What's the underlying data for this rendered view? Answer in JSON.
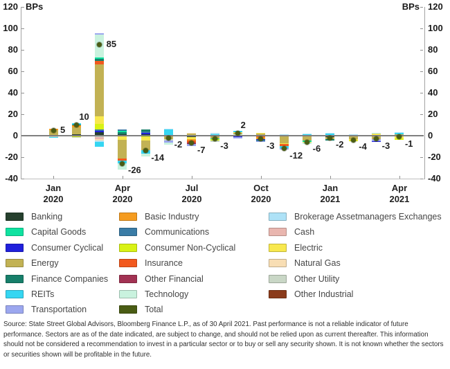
{
  "chart_data": {
    "type": "bar",
    "subtype": "stacked-bar-with-total-dots",
    "title": "",
    "unit": "BPs",
    "left_axis_label": "BPs",
    "right_axis_label": "BPs",
    "ylim": [
      -40,
      120
    ],
    "yticks": [
      120,
      100,
      80,
      60,
      40,
      20,
      0,
      -20,
      -40
    ],
    "grid": false,
    "legend_position": "bottom",
    "x_quarter_ticks": [
      {
        "index": 0,
        "line1": "Jan",
        "line2": "2020"
      },
      {
        "index": 3,
        "line1": "Apr",
        "line2": "2020"
      },
      {
        "index": 6,
        "line1": "Jul",
        "line2": "2020"
      },
      {
        "index": 9,
        "line1": "Oct",
        "line2": "2020"
      },
      {
        "index": 12,
        "line1": "Jan",
        "line2": "2021"
      },
      {
        "index": 15,
        "line1": "Apr",
        "line2": "2021"
      }
    ],
    "totals": [
      5,
      10,
      85,
      -26,
      -14,
      -2,
      -7,
      -3,
      2,
      -3,
      -12,
      -6,
      -2,
      -4,
      -3,
      -1
    ],
    "bars": [
      {
        "month": "Jan 2020",
        "total": 5,
        "label": "5",
        "label_pos": "right",
        "segments": [
          {
            "sector": "Banking",
            "value": 0.5
          },
          {
            "sector": "Energy",
            "value": 4.5
          },
          {
            "sector": "Basic Industry",
            "value": 1.5
          },
          {
            "sector": "Capital Goods",
            "value": -0.5
          },
          {
            "sector": "Other Utility",
            "value": -0.5
          },
          {
            "sector": "REITs",
            "value": -0.5
          }
        ]
      },
      {
        "month": "Feb 2020",
        "total": 10,
        "label": "10",
        "label_pos": "above",
        "segments": [
          {
            "sector": "Banking",
            "value": 1.5
          },
          {
            "sector": "Energy",
            "value": 6.5
          },
          {
            "sector": "Basic Industry",
            "value": 1.5
          },
          {
            "sector": "Finance Companies",
            "value": 1
          },
          {
            "sector": "REITs",
            "value": 1
          },
          {
            "sector": "Electric",
            "value": -0.5
          },
          {
            "sector": "Consumer Non-Cyclical",
            "value": -0.5
          },
          {
            "sector": "Other Utility",
            "value": -0.5
          }
        ]
      },
      {
        "month": "Mar 2020",
        "total": 85,
        "label": "85",
        "label_pos": "right",
        "segments": [
          {
            "sector": "Banking",
            "value": 3
          },
          {
            "sector": "Consumer Cyclical",
            "value": 1.5
          },
          {
            "sector": "Communications",
            "value": 1.5
          },
          {
            "sector": "Consumer Non-Cyclical",
            "value": 5
          },
          {
            "sector": "Electric",
            "value": 7
          },
          {
            "sector": "Energy",
            "value": 48.5
          },
          {
            "sector": "Insurance",
            "value": 3
          },
          {
            "sector": "Finance Companies",
            "value": 2
          },
          {
            "sector": "Capital Goods",
            "value": 1.5
          },
          {
            "sector": "Technology",
            "value": 21
          },
          {
            "sector": "Transportation",
            "value": 1.5
          },
          {
            "sector": "Other Utility",
            "value": -1.5
          },
          {
            "sector": "Cash",
            "value": -2
          },
          {
            "sector": "Natural Gas",
            "value": -1
          },
          {
            "sector": "Brokerage Assetmanagers Exchanges",
            "value": -1.5
          },
          {
            "sector": "REITs",
            "value": -4.5
          }
        ]
      },
      {
        "month": "Apr 2020",
        "total": -26,
        "label": "-26",
        "label_pos": "below",
        "segments": [
          {
            "sector": "Banking",
            "value": 1.5
          },
          {
            "sector": "Finance Companies",
            "value": 2
          },
          {
            "sector": "Capital Goods",
            "value": 1
          },
          {
            "sector": "Communications",
            "value": 1
          },
          {
            "sector": "Electric",
            "value": -4
          },
          {
            "sector": "Energy",
            "value": -17
          },
          {
            "sector": "Insurance",
            "value": -2
          },
          {
            "sector": "REITs",
            "value": -2.5
          },
          {
            "sector": "Technology",
            "value": -6
          }
        ]
      },
      {
        "month": "May 2020",
        "total": -14,
        "label": "-14",
        "label_pos": "below",
        "segments": [
          {
            "sector": "Banking",
            "value": 1
          },
          {
            "sector": "Consumer Cyclical",
            "value": 1.5
          },
          {
            "sector": "Communications",
            "value": 1.5
          },
          {
            "sector": "Finance Companies",
            "value": 1.5
          },
          {
            "sector": "Consumer Non-Cyclical",
            "value": -1.5
          },
          {
            "sector": "Electric",
            "value": -3
          },
          {
            "sector": "Energy",
            "value": -9
          },
          {
            "sector": "REITs",
            "value": -3.5
          },
          {
            "sector": "Technology",
            "value": -2.5
          }
        ]
      },
      {
        "month": "Jun 2020",
        "total": -2,
        "label": "-2",
        "label_pos": "below",
        "segments": [
          {
            "sector": "REITs",
            "value": 5.5
          },
          {
            "sector": "Brokerage Assetmanagers Exchanges",
            "value": 1
          },
          {
            "sector": "Energy",
            "value": -3
          },
          {
            "sector": "Other Utility",
            "value": -1.5
          },
          {
            "sector": "Transportation",
            "value": -2
          },
          {
            "sector": "Technology",
            "value": -2
          }
        ]
      },
      {
        "month": "Jul 2020",
        "total": -7,
        "label": "-7",
        "label_pos": "below",
        "segments": [
          {
            "sector": "Energy",
            "value": 2
          },
          {
            "sector": "Natural Gas",
            "value": 0.5
          },
          {
            "sector": "Banking",
            "value": -1.5
          },
          {
            "sector": "Electric",
            "value": -2
          },
          {
            "sector": "Basic Industry",
            "value": -1
          },
          {
            "sector": "Insurance",
            "value": -2
          },
          {
            "sector": "Other Financial",
            "value": -1
          },
          {
            "sector": "Transportation",
            "value": -2
          }
        ]
      },
      {
        "month": "Aug 2020",
        "total": -3,
        "label": "-3",
        "label_pos": "below",
        "segments": [
          {
            "sector": "REITs",
            "value": 1.5
          },
          {
            "sector": "Brokerage Assetmanagers Exchanges",
            "value": 1
          },
          {
            "sector": "Energy",
            "value": -2.5
          },
          {
            "sector": "Capital Goods",
            "value": -1
          },
          {
            "sector": "Consumer Non-Cyclical",
            "value": -1
          },
          {
            "sector": "Other Utility",
            "value": -1
          }
        ]
      },
      {
        "month": "Sep 2020",
        "total": 2,
        "label": "2",
        "label_pos": "above",
        "segments": [
          {
            "sector": "Technology",
            "value": 1.5
          },
          {
            "sector": "Energy",
            "value": 1.5
          },
          {
            "sector": "Electric",
            "value": 0.5
          },
          {
            "sector": "REITs",
            "value": 1
          },
          {
            "sector": "Consumer Cyclical",
            "value": -1
          },
          {
            "sector": "Transportation",
            "value": -1.5
          }
        ]
      },
      {
        "month": "Oct 2020",
        "total": -3,
        "label": "-3",
        "label_pos": "below",
        "segments": [
          {
            "sector": "Energy",
            "value": 2
          },
          {
            "sector": "Electric",
            "value": 0.5
          },
          {
            "sector": "Insurance",
            "value": -1.5
          },
          {
            "sector": "Basic Industry",
            "value": -1.5
          },
          {
            "sector": "Consumer Cyclical",
            "value": -1
          },
          {
            "sector": "Communications",
            "value": -1
          },
          {
            "sector": "Transportation",
            "value": -0.5
          }
        ]
      },
      {
        "month": "Nov 2020",
        "total": -12,
        "label": "-12",
        "label_pos": "below",
        "segments": [
          {
            "sector": "Other Utility",
            "value": 0.5
          },
          {
            "sector": "Brokerage Assetmanagers Exchanges",
            "value": 0.5
          },
          {
            "sector": "Energy",
            "value": -7
          },
          {
            "sector": "Electric",
            "value": -1
          },
          {
            "sector": "Insurance",
            "value": -1.5
          },
          {
            "sector": "REITs",
            "value": -2
          },
          {
            "sector": "Transportation",
            "value": -1.5
          }
        ]
      },
      {
        "month": "Dec 2020",
        "total": -6,
        "label": "-6",
        "label_pos": "below",
        "segments": [
          {
            "sector": "REITs",
            "value": 1.5
          },
          {
            "sector": "Brokerage Assetmanagers Exchanges",
            "value": 0.5
          },
          {
            "sector": "Energy",
            "value": -4.5
          },
          {
            "sector": "Capital Goods",
            "value": -1
          },
          {
            "sector": "Electric",
            "value": -1
          },
          {
            "sector": "Technology",
            "value": -1.5
          }
        ]
      },
      {
        "month": "Jan 2021",
        "total": -2,
        "label": "-2",
        "label_pos": "below",
        "segments": [
          {
            "sector": "REITs",
            "value": 2
          },
          {
            "sector": "Brokerage Assetmanagers Exchanges",
            "value": 0.5
          },
          {
            "sector": "Banking",
            "value": -1
          },
          {
            "sector": "Energy",
            "value": -2.5
          },
          {
            "sector": "Finance Companies",
            "value": -1
          }
        ]
      },
      {
        "month": "Feb 2021",
        "total": -4,
        "label": "-4",
        "label_pos": "below",
        "segments": [
          {
            "sector": "Natural Gas",
            "value": 0.5
          },
          {
            "sector": "Brokerage Assetmanagers Exchanges",
            "value": 0.5
          },
          {
            "sector": "Energy",
            "value": -3.5
          },
          {
            "sector": "Electric",
            "value": -1
          },
          {
            "sector": "Consumer Non-Cyclical",
            "value": -0.5
          }
        ]
      },
      {
        "month": "Mar 2021",
        "total": -3,
        "label": "-3",
        "label_pos": "below",
        "segments": [
          {
            "sector": "Finance Companies",
            "value": 0.5
          },
          {
            "sector": "Electric",
            "value": 1.5
          },
          {
            "sector": "Brokerage Assetmanagers Exchanges",
            "value": 0.5
          },
          {
            "sector": "Energy",
            "value": -3.5
          },
          {
            "sector": "Transportation",
            "value": -1.5
          },
          {
            "sector": "Consumer Cyclical",
            "value": -0.5
          }
        ]
      },
      {
        "month": "Apr 2021",
        "total": -1,
        "label": "-1",
        "label_pos": "below",
        "segments": [
          {
            "sector": "Energy",
            "value": 1
          },
          {
            "sector": "REITs",
            "value": 1.5
          },
          {
            "sector": "Brokerage Assetmanagers Exchanges",
            "value": 0.5
          },
          {
            "sector": "Electric",
            "value": -2.5
          },
          {
            "sector": "Consumer Non-Cyclical",
            "value": -1.5
          }
        ]
      }
    ]
  },
  "sector_colors": {
    "Banking": "#26402e",
    "Capital Goods": "#0fe2a0",
    "Consumer Cyclical": "#2020dc",
    "Energy": "#c2b254",
    "Finance Companies": "#177f6a",
    "REITs": "#35d6f2",
    "Transportation": "#9ca7ef",
    "Basic Industry": "#f59c20",
    "Communications": "#3a7ca6",
    "Consumer Non-Cyclical": "#d9f215",
    "Insurance": "#f2591e",
    "Other Financial": "#a23253",
    "Technology": "#c9f2de",
    "Total": "#4a5c14",
    "Brokerage Assetmanagers Exchanges": "#aee2f7",
    "Cash": "#e9b6af",
    "Electric": "#f8e84e",
    "Natural Gas": "#f8deb4",
    "Other Utility": "#c9d7c6",
    "Other Industrial": "#8b3b1b"
  },
  "legend": {
    "columns": [
      [
        "Banking",
        "Capital Goods",
        "Consumer Cyclical",
        "Energy",
        "Finance Companies",
        "REITs",
        "Transportation"
      ],
      [
        "Basic Industry",
        "Communications",
        "Consumer Non-Cyclical",
        "Insurance",
        "Other Financial",
        "Technology",
        "Total"
      ],
      [
        "Brokerage Assetmanagers Exchanges",
        "Cash",
        "Electric",
        "Natural Gas",
        "Other Utility",
        "Other Industrial"
      ]
    ]
  },
  "source_note": "Source: State Street Global Advisors, Bloomberg Finance L.P., as of 30 April 2021. Past performance is not a reliable indicator of future performance. Sectors are as of the date indicated, are subject to change, and should not be relied upon as current thereafter. This information should not be considered a recommendation to invest in a particular sector or to buy or sell any security shown. It is not known whether the sectors or securities shown will be profitable in the future."
}
